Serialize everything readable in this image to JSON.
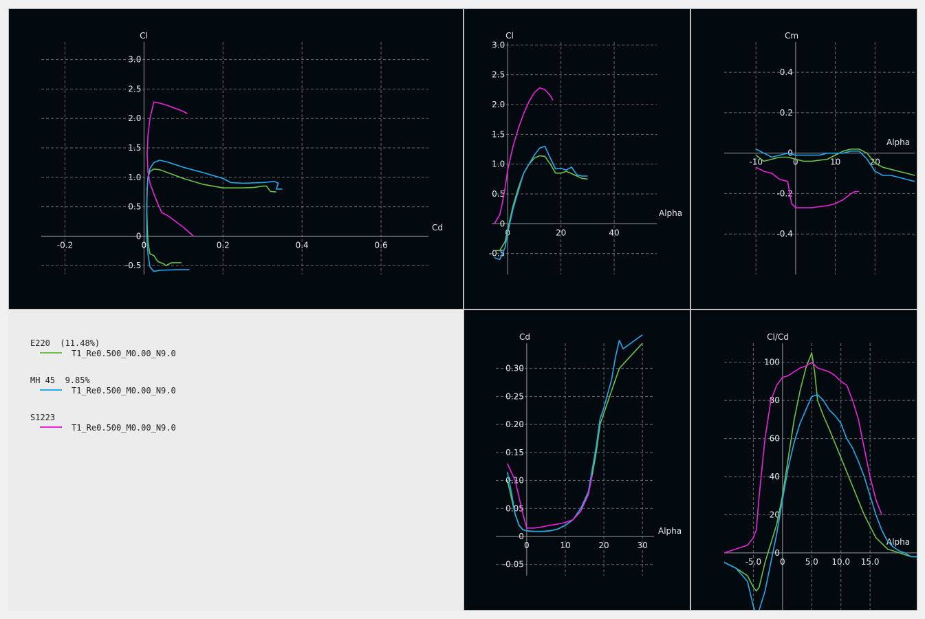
{
  "colors": {
    "E220": "#6cc24a",
    "MH45": "#22aaee",
    "S1223": "#ee22dd",
    "grid": "#6a6a6a",
    "axis": "#9a9a9a",
    "text": "#e8e8e8"
  },
  "legend": [
    {
      "name": "E220  (11.48%)",
      "desc": "T1_Re0.500_M0.00_N9.0",
      "color": "#6cc24a"
    },
    {
      "name": "MH 45  9.85%",
      "desc": "T1_Re0.500_M0.00_N9.0",
      "color": "#22aaee"
    },
    {
      "name": "S1223",
      "desc": "T1_Re0.500_M0.00_N9.0",
      "color": "#ee22dd"
    }
  ],
  "chart_data": [
    {
      "id": "polar",
      "type": "line",
      "xlabel": "Cd",
      "ylabel": "Cl",
      "xlim": [
        -0.26,
        0.72
      ],
      "ylim": [
        -0.65,
        3.3
      ],
      "xticks": [
        -0.2,
        0,
        0.2,
        0.4,
        0.6
      ],
      "xtick_labels": [
        "-0.2",
        "0",
        "0.2",
        "0.4",
        "0.6"
      ],
      "yticks": [
        -0.5,
        0,
        0.5,
        1,
        1.5,
        2,
        2.5,
        3
      ],
      "ytick_labels": [
        "-0.5",
        "0",
        "0.5",
        "1.0",
        "1.5",
        "2.0",
        "2.5",
        "3.0"
      ],
      "grid": true,
      "series": [
        {
          "name": "E220",
          "x": [
            0.095,
            0.07,
            0.055,
            0.05,
            0.035,
            0.025,
            0.015,
            0.01,
            0.008,
            0.007,
            0.008,
            0.01,
            0.015,
            0.025,
            0.04,
            0.06,
            0.1,
            0.15,
            0.2,
            0.25,
            0.28,
            0.3,
            0.31,
            0.32,
            0.335
          ],
          "y": [
            -0.45,
            -0.45,
            -0.5,
            -0.47,
            -0.43,
            -0.33,
            -0.3,
            -0.1,
            0.2,
            0.5,
            0.8,
            1.0,
            1.1,
            1.14,
            1.13,
            1.08,
            0.98,
            0.88,
            0.82,
            0.82,
            0.83,
            0.85,
            0.85,
            0.76,
            0.75
          ]
        },
        {
          "name": "MH45",
          "x": [
            0.115,
            0.08,
            0.04,
            0.025,
            0.015,
            0.01,
            0.007,
            0.007,
            0.008,
            0.01,
            0.015,
            0.025,
            0.04,
            0.06,
            0.1,
            0.15,
            0.2,
            0.22,
            0.25,
            0.3,
            0.33,
            0.34,
            0.335,
            0.35
          ],
          "y": [
            -0.57,
            -0.57,
            -0.58,
            -0.6,
            -0.52,
            -0.3,
            0.0,
            0.4,
            0.8,
            1.0,
            1.15,
            1.25,
            1.29,
            1.26,
            1.17,
            1.08,
            0.98,
            0.91,
            0.9,
            0.91,
            0.93,
            0.9,
            0.8,
            0.8
          ]
        },
        {
          "name": "S1223",
          "x": [
            0.125,
            0.1,
            0.08,
            0.06,
            0.045,
            0.035,
            0.025,
            0.015,
            0.01,
            0.008,
            0.01,
            0.015,
            0.025,
            0.04,
            0.06,
            0.08,
            0.1,
            0.11
          ],
          "y": [
            0.0,
            0.15,
            0.25,
            0.35,
            0.4,
            0.55,
            0.72,
            0.9,
            1.1,
            1.4,
            1.7,
            2.0,
            2.28,
            2.26,
            2.22,
            2.17,
            2.12,
            2.08
          ]
        }
      ]
    },
    {
      "id": "cl-alpha",
      "type": "line",
      "xlabel": "Alpha",
      "ylabel": "Cl",
      "xlim": [
        -6,
        56
      ],
      "ylim": [
        -0.85,
        3.05
      ],
      "xticks": [
        0,
        20,
        40
      ],
      "xtick_labels": [
        "0",
        "20",
        "40"
      ],
      "yticks": [
        -0.5,
        0,
        0.5,
        1,
        1.5,
        2,
        2.5,
        3
      ],
      "ytick_labels": [
        "-0.5",
        "0",
        "0.5",
        "1.0",
        "1.5",
        "2.0",
        "2.5",
        "3.0"
      ],
      "grid": true,
      "series": [
        {
          "name": "E220",
          "x": [
            -5,
            -3,
            -1,
            0,
            2,
            4,
            6,
            8,
            10,
            12,
            14,
            16,
            18,
            20,
            22,
            24,
            26,
            28,
            30
          ],
          "y": [
            -0.45,
            -0.45,
            -0.3,
            -0.1,
            0.3,
            0.6,
            0.85,
            1.0,
            1.1,
            1.14,
            1.13,
            1.0,
            0.85,
            0.85,
            0.88,
            0.84,
            0.8,
            0.76,
            0.75
          ]
        },
        {
          "name": "MH45",
          "x": [
            -5,
            -3,
            -1,
            0,
            2,
            4,
            6,
            8,
            10,
            12,
            14,
            16,
            18,
            20,
            22,
            24,
            26,
            28,
            30
          ],
          "y": [
            -0.57,
            -0.6,
            -0.4,
            -0.15,
            0.25,
            0.55,
            0.85,
            1.0,
            1.15,
            1.27,
            1.3,
            1.1,
            0.92,
            0.93,
            0.9,
            0.95,
            0.82,
            0.8,
            0.8
          ]
        },
        {
          "name": "S1223",
          "x": [
            -5,
            -3,
            -2,
            -1,
            0,
            2,
            4,
            6,
            8,
            10,
            12,
            14,
            16,
            17
          ],
          "y": [
            0.0,
            0.15,
            0.35,
            0.6,
            0.9,
            1.3,
            1.6,
            1.85,
            2.05,
            2.2,
            2.28,
            2.25,
            2.15,
            2.07
          ]
        }
      ]
    },
    {
      "id": "cm-alpha",
      "type": "line",
      "xlabel": "Alpha",
      "ylabel": "Cm",
      "xlim": [
        -18,
        30
      ],
      "ylim": [
        -0.6,
        0.55
      ],
      "xticks": [
        -10,
        0,
        10,
        20
      ],
      "xtick_labels": [
        "-10",
        "0",
        "10",
        "20"
      ],
      "yticks": [
        -0.4,
        -0.2,
        0,
        0.2,
        0.4
      ],
      "ytick_labels": [
        "-0.4",
        "-0.2",
        "0",
        "0.2",
        "0.4"
      ],
      "grid": true,
      "series": [
        {
          "name": "E220",
          "x": [
            -10,
            -8,
            -6,
            -4,
            -2,
            0,
            2,
            4,
            6,
            8,
            10,
            12,
            14,
            16,
            18,
            20,
            22,
            24,
            26,
            28,
            30
          ],
          "y": [
            -0.01,
            -0.04,
            -0.03,
            -0.02,
            -0.02,
            -0.03,
            -0.04,
            -0.04,
            -0.035,
            -0.03,
            -0.01,
            0.01,
            0.02,
            0.02,
            0.0,
            -0.05,
            -0.07,
            -0.08,
            -0.09,
            -0.1,
            -0.11
          ]
        },
        {
          "name": "MH45",
          "x": [
            -10,
            -8,
            -6,
            -4,
            -2,
            0,
            2,
            4,
            6,
            8,
            10,
            12,
            14,
            16,
            18,
            20,
            22,
            24,
            26,
            28,
            30
          ],
          "y": [
            0.02,
            0.0,
            -0.02,
            -0.01,
            0.0,
            -0.01,
            -0.01,
            -0.01,
            -0.01,
            0.0,
            0.0,
            0.0,
            0.01,
            0.01,
            -0.03,
            -0.09,
            -0.11,
            -0.11,
            -0.12,
            -0.13,
            -0.14
          ]
        },
        {
          "name": "S1223",
          "x": [
            -10,
            -8,
            -6,
            -4,
            -2,
            -1,
            0,
            2,
            4,
            6,
            8,
            10,
            12,
            14,
            15,
            16
          ],
          "y": [
            -0.07,
            -0.09,
            -0.1,
            -0.13,
            -0.14,
            -0.25,
            -0.27,
            -0.27,
            -0.27,
            -0.265,
            -0.26,
            -0.25,
            -0.23,
            -0.2,
            -0.19,
            -0.19
          ]
        }
      ]
    },
    {
      "id": "cd-alpha",
      "type": "line",
      "xlabel": "Alpha",
      "ylabel": "Cd",
      "xlim": [
        -8,
        33
      ],
      "ylim": [
        -0.07,
        0.345
      ],
      "xticks": [
        0,
        10,
        20,
        30
      ],
      "xtick_labels": [
        "0",
        "10",
        "20",
        "30"
      ],
      "yticks": [
        -0.05,
        0,
        0.05,
        0.1,
        0.15,
        0.2,
        0.25,
        0.3
      ],
      "ytick_labels": [
        "-0.05",
        "0",
        "0.05",
        "0.10",
        "0.15",
        "0.20",
        "0.25",
        "0.30"
      ],
      "grid": true,
      "series": [
        {
          "name": "E220",
          "x": [
            -5,
            -4,
            -3,
            -2,
            -1,
            0,
            2,
            4,
            6,
            8,
            10,
            12,
            14,
            16,
            17,
            18,
            19,
            20,
            22,
            24,
            26,
            28,
            30
          ],
          "y": [
            0.1,
            0.07,
            0.04,
            0.02,
            0.012,
            0.01,
            0.009,
            0.009,
            0.01,
            0.013,
            0.02,
            0.03,
            0.045,
            0.08,
            0.11,
            0.15,
            0.2,
            0.22,
            0.26,
            0.3,
            0.315,
            0.33,
            0.345
          ]
        },
        {
          "name": "MH45",
          "x": [
            -5,
            -4,
            -3,
            -2,
            -1,
            0,
            2,
            4,
            6,
            8,
            10,
            12,
            14,
            16,
            17,
            18,
            19,
            20,
            22,
            23,
            24,
            25,
            26,
            28,
            30
          ],
          "y": [
            0.115,
            0.08,
            0.04,
            0.02,
            0.012,
            0.01,
            0.009,
            0.009,
            0.01,
            0.013,
            0.02,
            0.03,
            0.05,
            0.08,
            0.12,
            0.16,
            0.21,
            0.23,
            0.28,
            0.32,
            0.35,
            0.335,
            0.34,
            0.35,
            0.36
          ]
        },
        {
          "name": "S1223",
          "x": [
            -5,
            -3,
            -2,
            -1,
            0,
            2,
            4,
            6,
            8,
            10,
            12,
            14,
            16,
            17
          ],
          "y": [
            0.13,
            0.1,
            0.07,
            0.04,
            0.015,
            0.015,
            0.017,
            0.02,
            0.022,
            0.025,
            0.03,
            0.045,
            0.075,
            0.11
          ]
        }
      ]
    },
    {
      "id": "clcd-alpha",
      "type": "line",
      "xlabel": "Alpha",
      "ylabel": "Cl/Cd",
      "xlim": [
        -10,
        23
      ],
      "ylim": [
        -30,
        110
      ],
      "xticks": [
        -5,
        0,
        5,
        10,
        15
      ],
      "xtick_labels": [
        "-5.0",
        "0",
        "5.0",
        "10.0",
        "15.0"
      ],
      "yticks": [
        0,
        20,
        40,
        60,
        80,
        100
      ],
      "ytick_labels": [
        "0",
        "20",
        "40",
        "60",
        "80",
        "100"
      ],
      "grid": true,
      "series": [
        {
          "name": "E220",
          "x": [
            -10,
            -8,
            -6,
            -5,
            -4.5,
            -4,
            -3,
            -2,
            -1,
            0,
            1,
            2,
            3,
            4,
            5,
            5.5,
            6,
            7,
            8,
            10,
            12,
            14,
            16,
            18,
            20,
            22,
            23
          ],
          "y": [
            -5,
            -8,
            -12,
            -18,
            -20,
            -18,
            -5,
            5,
            15,
            30,
            50,
            70,
            85,
            97,
            105,
            95,
            80,
            72,
            65,
            50,
            35,
            20,
            8,
            2,
            0,
            -2,
            -2
          ]
        },
        {
          "name": "MH45",
          "x": [
            -10,
            -8,
            -6,
            -5,
            -4.5,
            -4,
            -3,
            -2,
            -1,
            0,
            1,
            2,
            3,
            4,
            5,
            6,
            7,
            8,
            9,
            10,
            11,
            12,
            13,
            14,
            15,
            16,
            17,
            18,
            19,
            20,
            21,
            22,
            23
          ],
          "y": [
            -5,
            -8,
            -15,
            -28,
            -32,
            -30,
            -20,
            -5,
            10,
            28,
            45,
            58,
            68,
            75,
            82,
            83,
            80,
            75,
            72,
            68,
            60,
            55,
            48,
            40,
            30,
            20,
            12,
            6,
            3,
            1,
            0,
            -2,
            -2
          ]
        },
        {
          "name": "S1223",
          "x": [
            -10,
            -8,
            -6,
            -5,
            -4.5,
            -4,
            -3,
            -2,
            -1,
            0,
            1,
            2,
            3,
            4,
            5,
            6,
            7,
            8,
            9,
            10,
            11,
            12,
            13,
            14,
            15,
            16,
            17
          ],
          "y": [
            0,
            2,
            4,
            8,
            12,
            30,
            60,
            80,
            88,
            92,
            93,
            95,
            97,
            98,
            100,
            97,
            96,
            95,
            93,
            90,
            88,
            80,
            70,
            55,
            40,
            28,
            20
          ]
        }
      ]
    }
  ]
}
